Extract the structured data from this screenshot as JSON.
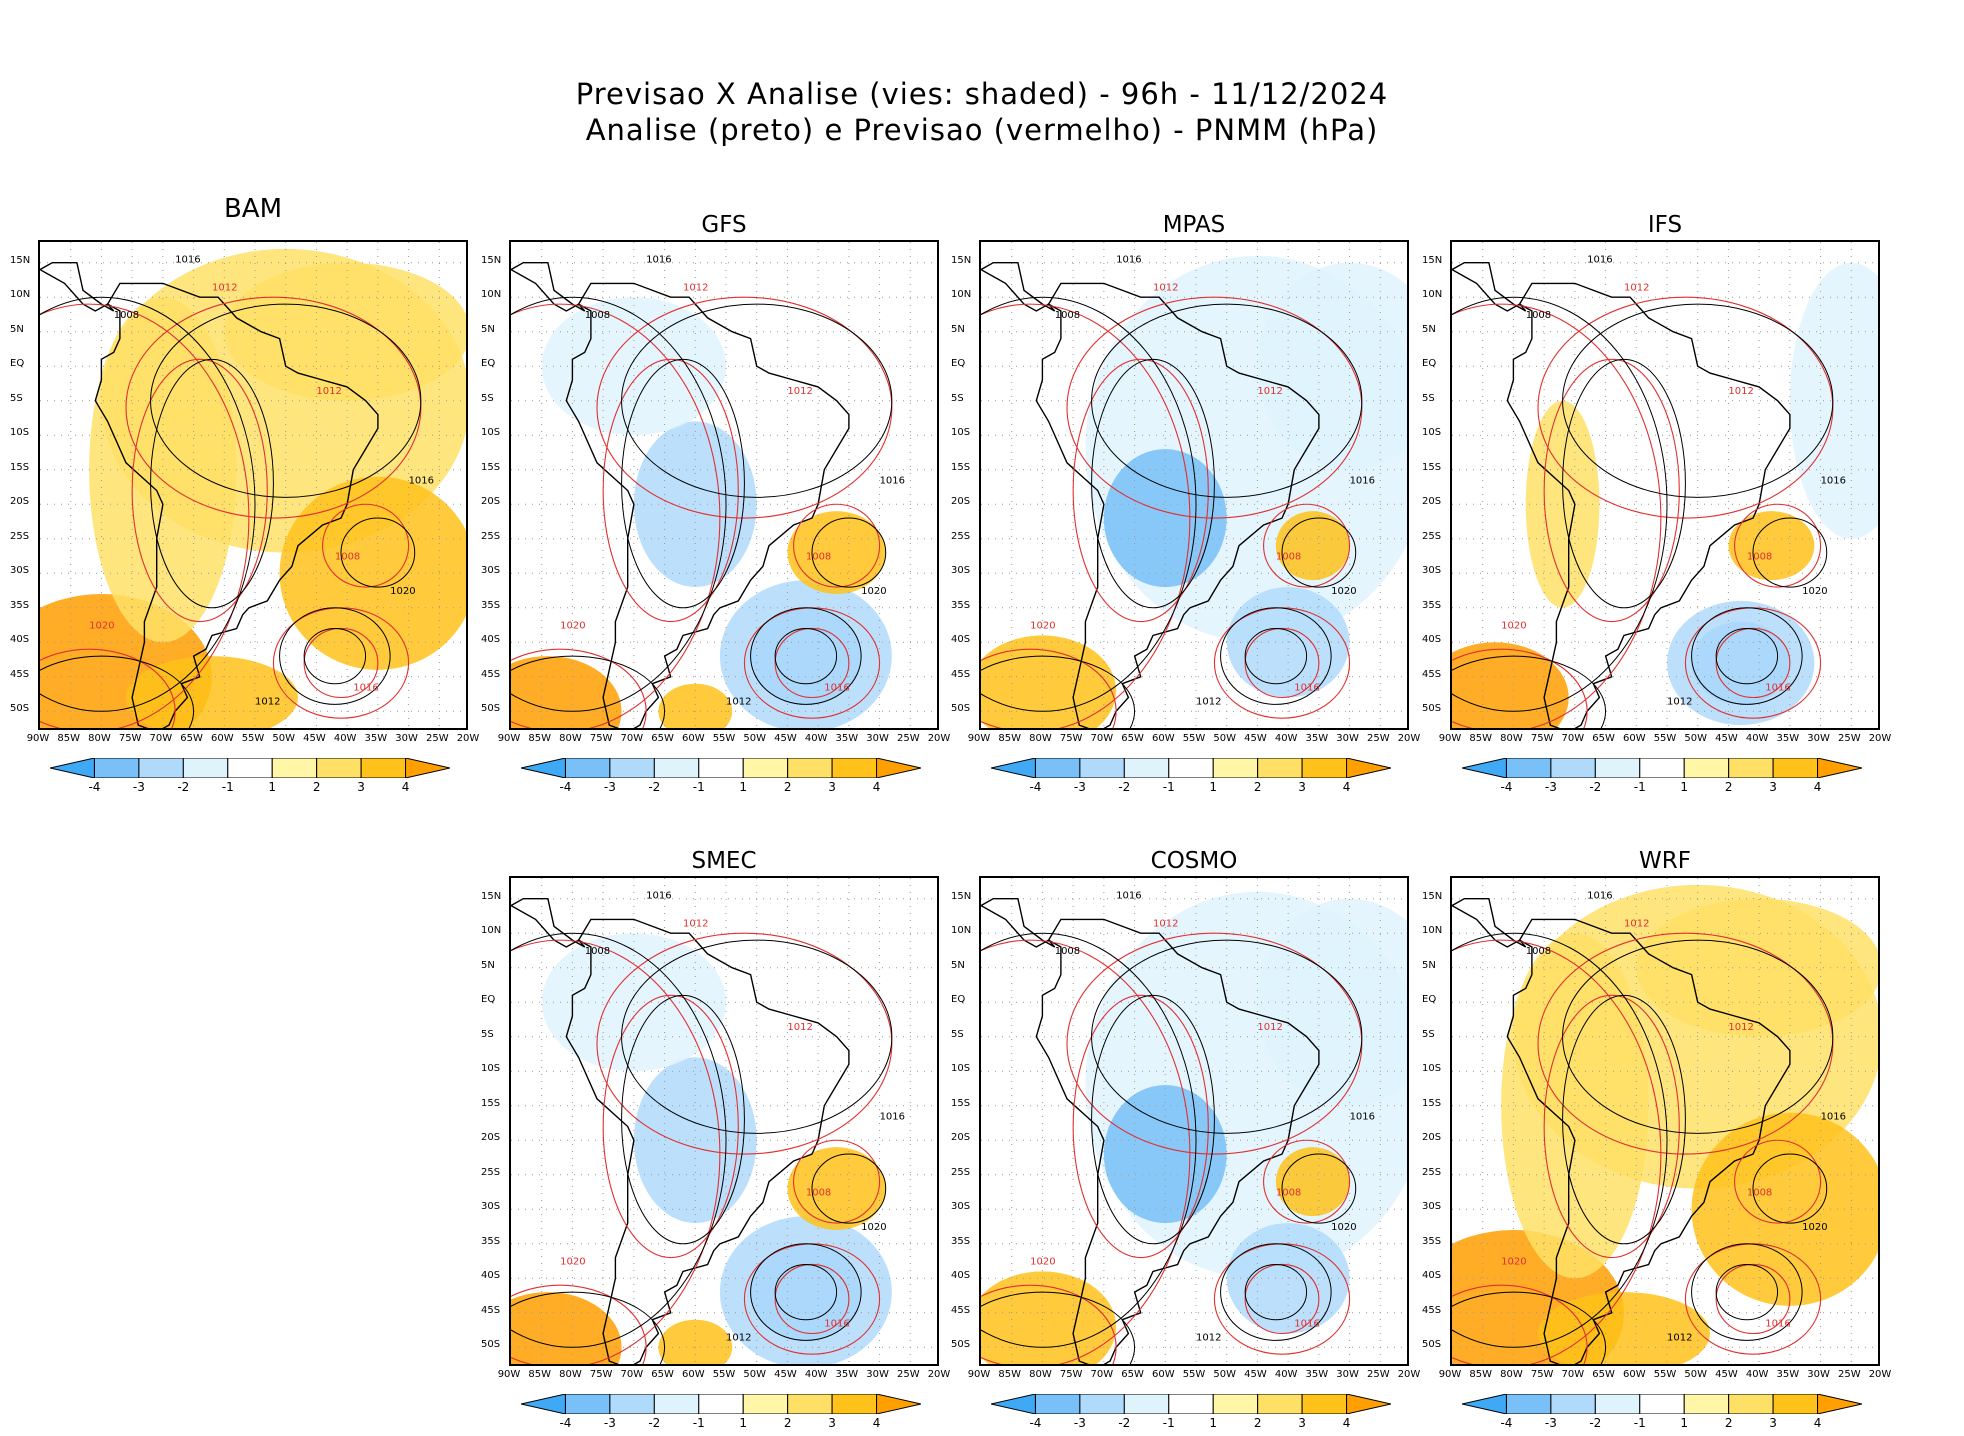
{
  "figure": {
    "title_line1": "Previsao X Analise (vies: shaded) - 96h - 11/12/2024",
    "title_line2": "Analise (preto) e Previsao (vermelho) - PNMM (hPa)"
  },
  "axes": {
    "lat_labels": [
      "15N",
      "10N",
      "5N",
      "EQ",
      "5S",
      "10S",
      "15S",
      "20S",
      "25S",
      "30S",
      "35S",
      "40S",
      "45S",
      "50S"
    ],
    "lon_labels": [
      "90W",
      "85W",
      "80W",
      "75W",
      "70W",
      "65W",
      "60W",
      "55W",
      "50W",
      "45W",
      "40W",
      "35W",
      "30W",
      "25W",
      "20W"
    ]
  },
  "colorbar": {
    "labels": [
      "-4",
      "-3",
      "-2",
      "-1",
      "1",
      "2",
      "3",
      "4"
    ],
    "colors": [
      "#3fa9f5",
      "#78c0f7",
      "#b0dafb",
      "#dff3fd",
      "#ffffff",
      "#fff6a8",
      "#ffe066",
      "#ffc21a",
      "#ff9f00"
    ]
  },
  "colors": {
    "analysis_isobars": "#000000",
    "forecast_isobars": "#e03030",
    "positive_bias": "#ffb000",
    "negative_bias": "#5ab4f0"
  },
  "panels": [
    {
      "name": "BAM",
      "bias": "positive",
      "isobar_labels": [
        "1016",
        "1012",
        "1008",
        "1012",
        "1016",
        "1020",
        "1020",
        "1016",
        "1012",
        "1008"
      ]
    },
    {
      "name": "GFS",
      "bias": "mixed",
      "isobar_labels": [
        "1016",
        "1012",
        "1008",
        "1012",
        "1016",
        "1020",
        "1020",
        "1016",
        "1012",
        "1008"
      ]
    },
    {
      "name": "MPAS",
      "bias": "negative",
      "isobar_labels": [
        "1016",
        "1012",
        "1008",
        "1012",
        "1016",
        "1020",
        "1020",
        "1016",
        "1012",
        "1008"
      ]
    },
    {
      "name": "IFS",
      "bias": "neutral",
      "isobar_labels": [
        "1016",
        "1012",
        "1008",
        "1012",
        "1016",
        "1020",
        "1020",
        "1016",
        "1012",
        "1008"
      ]
    },
    {
      "name": "SMEC",
      "bias": "mixed",
      "isobar_labels": [
        "1016",
        "1012",
        "1008",
        "1012",
        "1016",
        "1020",
        "1020",
        "1016",
        "1012",
        "1008"
      ]
    },
    {
      "name": "COSMO",
      "bias": "negative",
      "isobar_labels": [
        "1016",
        "1012",
        "1008",
        "1012",
        "1016",
        "1020",
        "1020",
        "1016",
        "1012",
        "1008"
      ]
    },
    {
      "name": "WRF",
      "bias": "positive",
      "isobar_labels": [
        "1016",
        "1012",
        "1008",
        "1012",
        "1016",
        "1020",
        "1020",
        "1016",
        "1012",
        "1008"
      ]
    }
  ]
}
